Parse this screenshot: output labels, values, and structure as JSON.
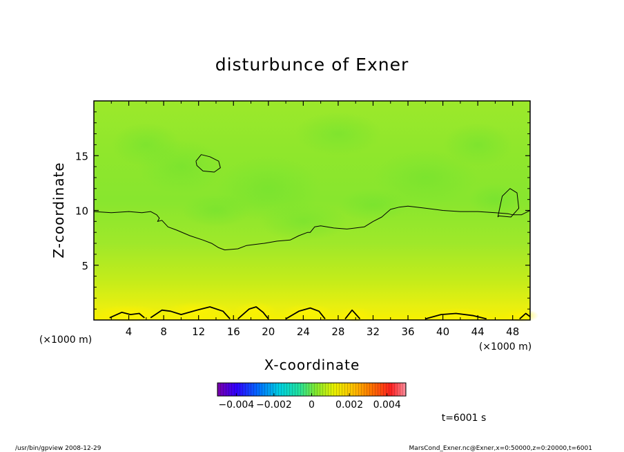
{
  "chart_data": {
    "type": "heatmap",
    "title": "disturbunce of Exner",
    "xlabel": "X-coordinate",
    "ylabel": "Z-coordinate",
    "x_unit_left": "(×1000 m)",
    "x_unit_right": "(×1000 m)",
    "xlim": [
      0,
      50
    ],
    "ylim": [
      0,
      20
    ],
    "x_ticks": [
      4,
      8,
      12,
      16,
      20,
      24,
      28,
      32,
      36,
      40,
      44,
      48
    ],
    "y_ticks": [
      5,
      10,
      15
    ],
    "colorbar": {
      "vmin": -0.005,
      "vmax": 0.005,
      "tick_values": [
        -0.004,
        -0.002,
        0,
        0.002,
        0.004
      ],
      "tick_labels": [
        "−0.004",
        "−0.002",
        "0",
        "0.002",
        "0.004"
      ]
    },
    "contour_level": 0,
    "zero_contour_upper": {
      "x": [
        0,
        2,
        4,
        5.5,
        6.5,
        7.2,
        7.5,
        7.3,
        7.8,
        8.5,
        9.5,
        11,
        12.5,
        13.5,
        14.3,
        15,
        16.5,
        17.5,
        18.5,
        19.5,
        21,
        22.5,
        23.5,
        24.5,
        24.8,
        25.3,
        26,
        27.5,
        29,
        31,
        32,
        33,
        34,
        35,
        36,
        38,
        40,
        42,
        44,
        46,
        47.5,
        48,
        49,
        50
      ],
      "y": [
        9.9,
        9.8,
        9.9,
        9.8,
        9.9,
        9.6,
        9.3,
        9.0,
        9.1,
        8.5,
        8.2,
        7.7,
        7.3,
        7.0,
        6.6,
        6.4,
        6.5,
        6.8,
        6.9,
        7.0,
        7.2,
        7.3,
        7.7,
        8.0,
        8.0,
        8.5,
        8.6,
        8.4,
        8.3,
        8.5,
        9.0,
        9.4,
        10.1,
        10.3,
        10.4,
        10.2,
        10.0,
        9.9,
        9.9,
        9.8,
        9.7,
        9.6,
        9.6,
        10.0
      ]
    },
    "zero_contour_top_loop": {
      "x": [
        11.7,
        12.3,
        13.3,
        14.3,
        14.5,
        13.8,
        12.5,
        11.8,
        11.7
      ],
      "y": [
        14.5,
        15.1,
        14.9,
        14.5,
        13.9,
        13.5,
        13.6,
        14.1,
        14.5
      ]
    },
    "zero_contour_right_loop": {
      "x": [
        46.3,
        46.8,
        47.7,
        48.5,
        48.7,
        47.8,
        46.4,
        46.3
      ],
      "y": [
        9.4,
        11.3,
        12.0,
        11.6,
        10.2,
        9.4,
        9.5,
        9.4
      ]
    },
    "zero_contour_bottom_bumps": [
      {
        "x": [
          1.8,
          3.2,
          4.2,
          5.2,
          5.8
        ],
        "y": [
          0.2,
          0.7,
          0.5,
          0.6,
          0.2
        ]
      },
      {
        "x": [
          6.5,
          7.8,
          8.8,
          10,
          11.8,
          13.3,
          14.8,
          15.6
        ],
        "y": [
          0.2,
          0.9,
          0.8,
          0.5,
          0.9,
          1.2,
          0.8,
          0.1
        ]
      },
      {
        "x": [
          16.5,
          17.8,
          18.6,
          19.4,
          20.0
        ],
        "y": [
          0.1,
          1.0,
          1.2,
          0.7,
          0.1
        ]
      },
      {
        "x": [
          22,
          23.5,
          24.8,
          25.8,
          26.5
        ],
        "y": [
          0.1,
          0.8,
          1.1,
          0.8,
          0.1
        ]
      },
      {
        "x": [
          28.8,
          29.6,
          30.5
        ],
        "y": [
          0.1,
          0.9,
          0.1
        ]
      },
      {
        "x": [
          38,
          39.8,
          41.5,
          43.5,
          45
        ],
        "y": [
          0.1,
          0.5,
          0.6,
          0.4,
          0.1
        ]
      },
      {
        "x": [
          48.8,
          49.5,
          50
        ],
        "y": [
          0.1,
          0.6,
          0.3
        ]
      }
    ],
    "annotation_time": "t=6001 s",
    "grid": false
  },
  "footer": {
    "left": "/usr/bin/gpview   2008-12-29",
    "right": "MarsCond_Exner.nc@Exner,x=0:50000,z=0:20000,t=6001"
  }
}
